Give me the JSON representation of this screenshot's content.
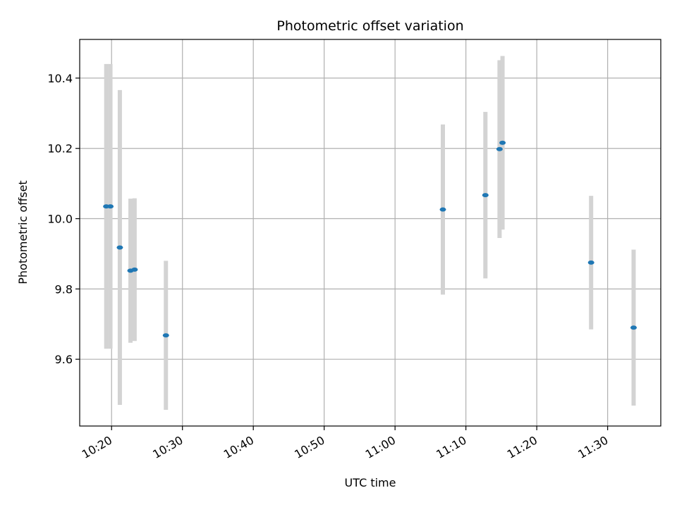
{
  "chart_data": {
    "type": "scatter",
    "title": "Photometric offset variation",
    "xlabel": "UTC time",
    "ylabel": "Photometric offset",
    "x_ticks": [
      "10:20",
      "10:30",
      "10:40",
      "10:50",
      "11:00",
      "11:10",
      "11:20",
      "11:30"
    ],
    "x_tick_minutes": [
      620,
      630,
      640,
      650,
      660,
      670,
      680,
      690
    ],
    "y_ticks": [
      "9.6",
      "9.8",
      "10.0",
      "10.2",
      "10.4"
    ],
    "y_tick_values": [
      9.6,
      9.8,
      10.0,
      10.2,
      10.4
    ],
    "xlim": [
      "10:15:30",
      "11:37:30"
    ],
    "ylim": [
      9.41,
      10.51
    ],
    "grid": true,
    "point_color": "#1f77b4",
    "errorbar_color": "#d3d3d3",
    "points": [
      {
        "x": "10:19:15",
        "y": 10.035,
        "err": 0.405
      },
      {
        "x": "10:19:50",
        "y": 10.035,
        "err": 0.405
      },
      {
        "x": "10:21:10",
        "y": 9.918,
        "err": 0.448
      },
      {
        "x": "10:22:40",
        "y": 9.852,
        "err": 0.205
      },
      {
        "x": "10:23:15",
        "y": 9.855,
        "err": 0.203
      },
      {
        "x": "10:27:40",
        "y": 9.668,
        "err": 0.212
      },
      {
        "x": "11:06:45",
        "y": 10.026,
        "err": 0.242
      },
      {
        "x": "11:12:45",
        "y": 10.067,
        "err": 0.237
      },
      {
        "x": "11:14:45",
        "y": 10.198,
        "err": 0.253
      },
      {
        "x": "11:15:10",
        "y": 10.216,
        "err": 0.247
      },
      {
        "x": "11:27:40",
        "y": 9.875,
        "err": 0.19
      },
      {
        "x": "11:33:40",
        "y": 9.69,
        "err": 0.222
      }
    ]
  }
}
